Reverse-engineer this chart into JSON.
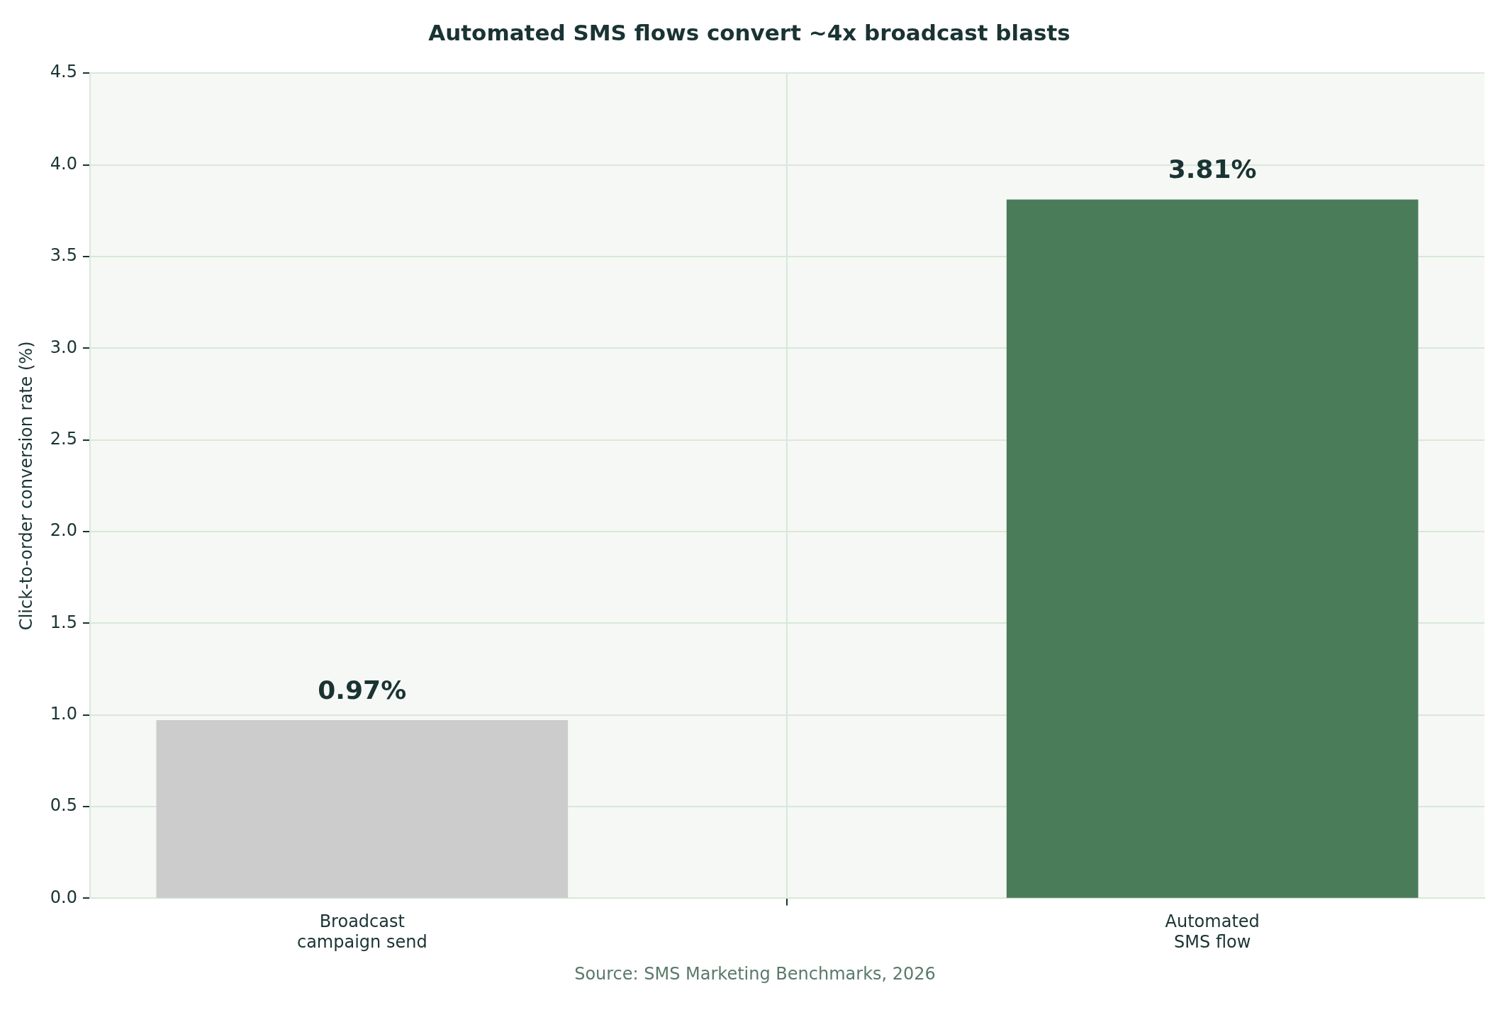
{
  "chart_data": {
    "type": "bar",
    "title": "Automated SMS flows convert ~4x broadcast blasts",
    "ylabel": "Click-to-order conversion rate (%)",
    "categories": [
      "Broadcast campaign send",
      "Automated SMS flow"
    ],
    "values": [
      0.97,
      3.81
    ],
    "colors": [
      "#cccccc",
      "#4a7c59"
    ],
    "value_labels": [
      "0.97%",
      "3.81%"
    ],
    "ylim": [
      0,
      4.5
    ],
    "yticks": [
      {
        "value": 0,
        "label": "0.0"
      },
      {
        "value": 0.5,
        "label": "0.5"
      },
      {
        "value": 1,
        "label": "1.0"
      },
      {
        "value": 1.5,
        "label": "1.5"
      },
      {
        "value": 2,
        "label": "2.0"
      },
      {
        "value": 2.5,
        "label": "2.5"
      },
      {
        "value": 3,
        "label": "3.0"
      },
      {
        "value": 3.5,
        "label": "3.5"
      },
      {
        "value": 4,
        "label": "4.0"
      },
      {
        "value": 4.5,
        "label": "4.5"
      }
    ],
    "grid": true,
    "annotations": [
      "Source: SMS Marketing Benchmarks, 2026"
    ]
  }
}
